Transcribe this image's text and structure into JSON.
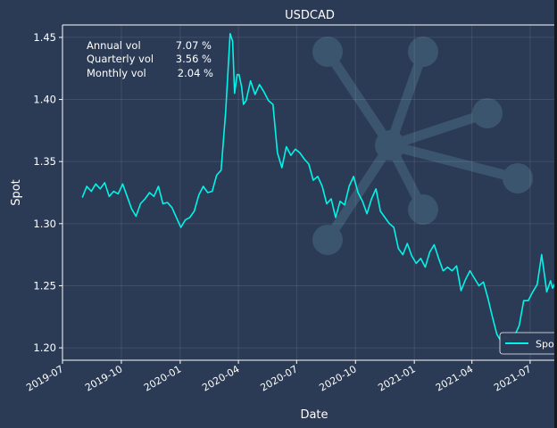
{
  "chart_data": {
    "type": "line",
    "title": "USDCAD",
    "xlabel": "Date",
    "ylabel": "Spot",
    "ylim": [
      1.19,
      1.46
    ],
    "xlim": [
      "2019-07-01",
      "2021-08-12"
    ],
    "yticks": [
      "1.20",
      "1.25",
      "1.30",
      "1.35",
      "1.40",
      "1.45"
    ],
    "xticks": [
      "2019-07",
      "2019-10",
      "2020-01",
      "2020-04",
      "2020-07",
      "2020-10",
      "2021-01",
      "2021-04",
      "2021-07"
    ],
    "grid": true,
    "legend_position": "lower-right",
    "annotations": [
      {
        "label": "Annual vol",
        "value": "7.07 %"
      },
      {
        "label": "Quarterly vol",
        "value": "3.56 %"
      },
      {
        "label": "Monthly vol",
        "value": "2.04 %"
      }
    ],
    "series": [
      {
        "name": "Spot",
        "color": "#00f5e8",
        "points": [
          [
            "2019-08-01",
            1.321
          ],
          [
            "2019-08-08",
            1.33
          ],
          [
            "2019-08-15",
            1.326
          ],
          [
            "2019-08-22",
            1.332
          ],
          [
            "2019-08-29",
            1.328
          ],
          [
            "2019-09-05",
            1.333
          ],
          [
            "2019-09-12",
            1.322
          ],
          [
            "2019-09-19",
            1.326
          ],
          [
            "2019-09-26",
            1.324
          ],
          [
            "2019-10-03",
            1.332
          ],
          [
            "2019-10-10",
            1.322
          ],
          [
            "2019-10-17",
            1.312
          ],
          [
            "2019-10-24",
            1.306
          ],
          [
            "2019-10-31",
            1.316
          ],
          [
            "2019-11-07",
            1.32
          ],
          [
            "2019-11-14",
            1.325
          ],
          [
            "2019-11-21",
            1.322
          ],
          [
            "2019-11-28",
            1.33
          ],
          [
            "2019-12-05",
            1.316
          ],
          [
            "2019-12-12",
            1.317
          ],
          [
            "2019-12-19",
            1.313
          ],
          [
            "2019-12-26",
            1.305
          ],
          [
            "2020-01-02",
            1.297
          ],
          [
            "2020-01-09",
            1.303
          ],
          [
            "2020-01-16",
            1.305
          ],
          [
            "2020-01-23",
            1.31
          ],
          [
            "2020-01-30",
            1.323
          ],
          [
            "2020-02-06",
            1.33
          ],
          [
            "2020-02-13",
            1.325
          ],
          [
            "2020-02-20",
            1.326
          ],
          [
            "2020-02-27",
            1.339
          ],
          [
            "2020-03-05",
            1.343
          ],
          [
            "2020-03-12",
            1.39
          ],
          [
            "2020-03-16",
            1.425
          ],
          [
            "2020-03-19",
            1.453
          ],
          [
            "2020-03-23",
            1.447
          ],
          [
            "2020-03-26",
            1.405
          ],
          [
            "2020-03-30",
            1.42
          ],
          [
            "2020-04-02",
            1.42
          ],
          [
            "2020-04-06",
            1.41
          ],
          [
            "2020-04-09",
            1.396
          ],
          [
            "2020-04-13",
            1.399
          ],
          [
            "2020-04-20",
            1.415
          ],
          [
            "2020-04-27",
            1.404
          ],
          [
            "2020-05-04",
            1.412
          ],
          [
            "2020-05-11",
            1.406
          ],
          [
            "2020-05-18",
            1.399
          ],
          [
            "2020-05-25",
            1.396
          ],
          [
            "2020-06-01",
            1.357
          ],
          [
            "2020-06-08",
            1.345
          ],
          [
            "2020-06-15",
            1.362
          ],
          [
            "2020-06-22",
            1.355
          ],
          [
            "2020-06-29",
            1.36
          ],
          [
            "2020-07-06",
            1.357
          ],
          [
            "2020-07-13",
            1.352
          ],
          [
            "2020-07-20",
            1.348
          ],
          [
            "2020-07-27",
            1.335
          ],
          [
            "2020-08-03",
            1.338
          ],
          [
            "2020-08-10",
            1.33
          ],
          [
            "2020-08-17",
            1.316
          ],
          [
            "2020-08-24",
            1.32
          ],
          [
            "2020-08-31",
            1.305
          ],
          [
            "2020-09-07",
            1.318
          ],
          [
            "2020-09-14",
            1.315
          ],
          [
            "2020-09-21",
            1.33
          ],
          [
            "2020-09-28",
            1.338
          ],
          [
            "2020-10-05",
            1.325
          ],
          [
            "2020-10-12",
            1.318
          ],
          [
            "2020-10-19",
            1.308
          ],
          [
            "2020-10-26",
            1.32
          ],
          [
            "2020-11-02",
            1.328
          ],
          [
            "2020-11-09",
            1.31
          ],
          [
            "2020-11-16",
            1.305
          ],
          [
            "2020-11-23",
            1.3
          ],
          [
            "2020-11-30",
            1.297
          ],
          [
            "2020-12-07",
            1.28
          ],
          [
            "2020-12-14",
            1.275
          ],
          [
            "2020-12-21",
            1.284
          ],
          [
            "2020-12-28",
            1.274
          ],
          [
            "2021-01-04",
            1.268
          ],
          [
            "2021-01-11",
            1.272
          ],
          [
            "2021-01-18",
            1.265
          ],
          [
            "2021-01-25",
            1.277
          ],
          [
            "2021-02-01",
            1.283
          ],
          [
            "2021-02-08",
            1.272
          ],
          [
            "2021-02-15",
            1.262
          ],
          [
            "2021-02-22",
            1.265
          ],
          [
            "2021-03-01",
            1.262
          ],
          [
            "2021-03-08",
            1.266
          ],
          [
            "2021-03-15",
            1.246
          ],
          [
            "2021-03-22",
            1.255
          ],
          [
            "2021-03-29",
            1.262
          ],
          [
            "2021-04-05",
            1.256
          ],
          [
            "2021-04-12",
            1.25
          ],
          [
            "2021-04-19",
            1.253
          ],
          [
            "2021-04-26",
            1.24
          ],
          [
            "2021-05-03",
            1.225
          ],
          [
            "2021-05-10",
            1.211
          ],
          [
            "2021-05-17",
            1.205
          ],
          [
            "2021-05-24",
            1.209
          ],
          [
            "2021-05-31",
            1.204
          ],
          [
            "2021-06-07",
            1.21
          ],
          [
            "2021-06-14",
            1.218
          ],
          [
            "2021-06-21",
            1.238
          ],
          [
            "2021-06-28",
            1.238
          ],
          [
            "2021-07-05",
            1.245
          ],
          [
            "2021-07-12",
            1.251
          ],
          [
            "2021-07-19",
            1.275
          ],
          [
            "2021-07-23",
            1.26
          ],
          [
            "2021-07-27",
            1.245
          ],
          [
            "2021-08-02",
            1.254
          ],
          [
            "2021-08-05",
            1.248
          ],
          [
            "2021-08-09",
            1.252
          ]
        ]
      }
    ]
  }
}
